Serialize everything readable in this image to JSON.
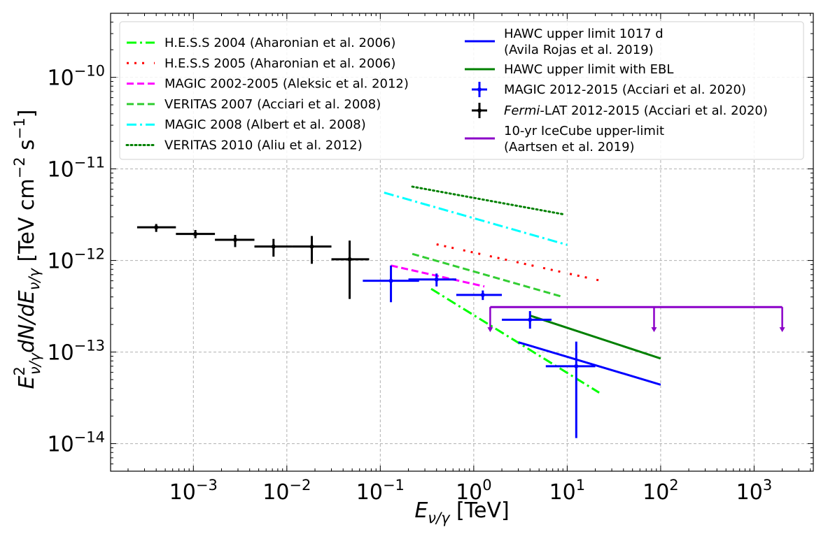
{
  "chart_data": {
    "type": "line",
    "xlabel": "E_{ν/γ} [TeV]",
    "ylabel": "E²_{ν/γ} dN/dE_{ν/γ} [TeV cm⁻² s⁻¹]",
    "xscale": "log",
    "yscale": "log",
    "xlim": [
      0.00013,
      4300
    ],
    "ylim": [
      5e-15,
      5e-10
    ],
    "x_tick_labels": [
      {
        "base": "10",
        "exp": "−3",
        "value": 0.001
      },
      {
        "base": "10",
        "exp": "−2",
        "value": 0.01
      },
      {
        "base": "10",
        "exp": "−1",
        "value": 0.1
      },
      {
        "base": "10",
        "exp": "0",
        "value": 1
      },
      {
        "base": "10",
        "exp": "1",
        "value": 10
      },
      {
        "base": "10",
        "exp": "2",
        "value": 100
      },
      {
        "base": "10",
        "exp": "3",
        "value": 1000
      }
    ],
    "y_tick_labels": [
      {
        "base": "10",
        "exp": "−10",
        "value": 1e-10
      },
      {
        "base": "10",
        "exp": "−11",
        "value": 1e-11
      },
      {
        "base": "10",
        "exp": "−12",
        "value": 1e-12
      },
      {
        "base": "10",
        "exp": "−13",
        "value": 1e-13
      },
      {
        "base": "10",
        "exp": "−14",
        "value": 1e-14
      }
    ],
    "grid": true,
    "legend_position": "top",
    "line_series": [
      {
        "name": "H.E.S.S 2004 (Aharonian et al. 2006)",
        "color": "#00ff00",
        "dash": "dashdot",
        "x": [
          0.35,
          22
        ],
        "y": [
          4.9e-13,
          3.6e-14
        ]
      },
      {
        "name": "H.E.S.S 2005 (Aharonian et al. 2006)",
        "color": "#ff0000",
        "dash": "dashdotdot",
        "x": [
          0.4,
          23
        ],
        "y": [
          1.5e-12,
          6e-13
        ]
      },
      {
        "name": "MAGIC 2002-2005 (Aleksic et al. 2012)",
        "color": "#ff00ff",
        "dash": "dashed",
        "x": [
          0.13,
          1.3
        ],
        "y": [
          8.8e-13,
          5.2e-13
        ]
      },
      {
        "name": "VERITAS 2007 (Acciari et al. 2008)",
        "color": "#32cd32",
        "dash": "dashed",
        "x": [
          0.22,
          9
        ],
        "y": [
          1.18e-12,
          4e-13
        ]
      },
      {
        "name": "MAGIC 2008 (Albert et al. 2008)",
        "color": "#00ffff",
        "dash": "dashdot",
        "x": [
          0.11,
          10
        ],
        "y": [
          5.5e-12,
          1.48e-12
        ]
      },
      {
        "name": "VERITAS 2010 (Aliu et al. 2012)",
        "color": "#008000",
        "dash": "dotted",
        "x": [
          0.22,
          9
        ],
        "y": [
          6.4e-12,
          3.2e-12
        ]
      },
      {
        "name": "HAWC upper limit 1017 d (Avila Rojas et al. 2019)",
        "color": "#0000ff",
        "dash": "solid",
        "x": [
          3,
          100
        ],
        "y": [
          1.28e-13,
          4.4e-14
        ]
      },
      {
        "name": "HAWC upper limit with EBL",
        "color": "#008000",
        "dash": "solid",
        "x": [
          4,
          100
        ],
        "y": [
          2.5e-13,
          8.5e-14
        ]
      }
    ],
    "error_series": [
      {
        "name": "MAGIC 2012-2015 (Acciari et al. 2020)",
        "color": "#0000ff",
        "points": [
          {
            "x": 0.13,
            "y": 6e-13,
            "xmin": 0.065,
            "xmax": 0.26,
            "ymin": 3.5e-13,
            "ymax": 8.8e-13
          },
          {
            "x": 0.4,
            "y": 6.2e-13,
            "xmin": 0.2,
            "xmax": 0.65,
            "ymin": 5.2e-13,
            "ymax": 7.2e-13
          },
          {
            "x": 1.25,
            "y": 4.2e-13,
            "xmin": 0.65,
            "xmax": 2.0,
            "ymin": 3.7e-13,
            "ymax": 4.7e-13
          },
          {
            "x": 4.0,
            "y": 2.25e-13,
            "xmin": 2.0,
            "xmax": 6.8,
            "ymin": 1.8e-13,
            "ymax": 2.8e-13
          },
          {
            "x": 12.5,
            "y": 7e-14,
            "xmin": 5.9,
            "xmax": 20,
            "ymin": 1.15e-14,
            "ymax": 1.3e-13
          }
        ]
      },
      {
        "name": "Fermi-LAT 2012-2015 (Acciari et al. 2020)",
        "name_italic": "Fermi",
        "name_rest": "-LAT 2012-2015 (Acciari et al. 2020)",
        "color": "#000000",
        "points": [
          {
            "x": 0.0004,
            "y": 2.3e-12,
            "xmin": 0.00025,
            "xmax": 0.00065,
            "ymin": 2.05e-12,
            "ymax": 2.5e-12
          },
          {
            "x": 0.00105,
            "y": 1.95e-12,
            "xmin": 0.00065,
            "xmax": 0.0017,
            "ymin": 1.75e-12,
            "ymax": 2.15e-12
          },
          {
            "x": 0.0028,
            "y": 1.68e-12,
            "xmin": 0.0017,
            "xmax": 0.0045,
            "ymin": 1.4e-12,
            "ymax": 1.9e-12
          },
          {
            "x": 0.0072,
            "y": 1.42e-12,
            "xmin": 0.0045,
            "xmax": 0.0115,
            "ymin": 1.1e-12,
            "ymax": 1.72e-12
          },
          {
            "x": 0.0185,
            "y": 1.42e-12,
            "xmin": 0.0115,
            "xmax": 0.03,
            "ymin": 9.2e-13,
            "ymax": 1.85e-12
          },
          {
            "x": 0.047,
            "y": 1.03e-12,
            "xmin": 0.03,
            "xmax": 0.076,
            "ymin": 3.8e-13,
            "ymax": 1.65e-12
          }
        ]
      }
    ],
    "upper_limit": {
      "name": "10-yr IceCube upper-limit (Aartsen et al. 2019)",
      "color": "#8b00c8",
      "xmin": 1.5,
      "xmax": 2000,
      "y": 3.1e-13,
      "arrows_x": [
        1.5,
        85,
        2000
      ],
      "arrow_to_y": 1.65e-13
    },
    "legend_left": [
      {
        "label": "H.E.S.S 2004 (Aharonian et al. 2006)",
        "color": "#00ff00",
        "dash": "dashdot"
      },
      {
        "label": "H.E.S.S 2005 (Aharonian et al. 2006)",
        "color": "#ff0000",
        "dash": "dashdotdot"
      },
      {
        "label": "MAGIC 2002-2005 (Aleksic et al. 2012)",
        "color": "#ff00ff",
        "dash": "dashed"
      },
      {
        "label": "VERITAS 2007 (Acciari et al. 2008)",
        "color": "#32cd32",
        "dash": "dashed"
      },
      {
        "label": "MAGIC 2008 (Albert et al. 2008)",
        "color": "#00ffff",
        "dash": "dashdot"
      },
      {
        "label": "VERITAS 2010 (Aliu et al. 2012)",
        "color": "#008000",
        "dash": "dotted"
      }
    ],
    "legend_right": [
      {
        "lines": [
          "HAWC upper limit 1017 d",
          "(Avila Rojas et al. 2019)"
        ],
        "color": "#0000ff",
        "kind": "line"
      },
      {
        "lines": [
          "HAWC upper limit with EBL"
        ],
        "color": "#008000",
        "kind": "line"
      },
      {
        "lines": [
          "MAGIC 2012-2015 (Acciari et al. 2020)"
        ],
        "color": "#0000ff",
        "kind": "errorbar"
      },
      {
        "lines": [
          "-LAT 2012-2015 (Acciari et al. 2020)"
        ],
        "italic_prefix": "Fermi",
        "color": "#000000",
        "kind": "errorbar"
      },
      {
        "lines": [
          "10-yr IceCube upper-limit",
          "(Aartsen et al. 2019)"
        ],
        "color": "#8b00c8",
        "kind": "line"
      }
    ]
  }
}
